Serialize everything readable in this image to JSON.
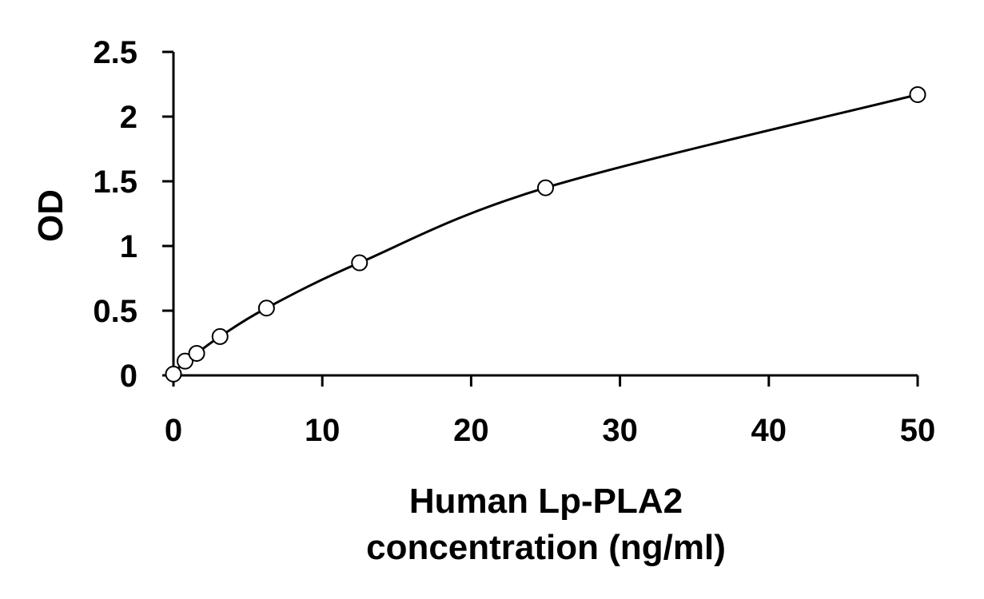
{
  "chart_data": {
    "type": "scatter",
    "title": "",
    "xlabel": [
      "Human Lp-PLA2",
      "concentration (ng/ml)"
    ],
    "ylabel": "OD",
    "xlim": [
      0,
      50
    ],
    "ylim": [
      0,
      2.5
    ],
    "x_ticks": [
      0,
      10,
      20,
      30,
      40,
      50
    ],
    "y_ticks": [
      0,
      0.5,
      1,
      1.5,
      2,
      2.5
    ],
    "x_tick_labels": [
      "0",
      "10",
      "20",
      "30",
      "40",
      "50"
    ],
    "y_tick_labels": [
      "0",
      "0.5",
      "1",
      "1.5",
      "2",
      "2.5"
    ],
    "grid": false,
    "legend": "none",
    "series": [
      {
        "marker": "open-circle",
        "fit": "smooth-curve",
        "x": [
          0,
          0.78,
          1.56,
          3.13,
          6.25,
          12.5,
          25,
          50
        ],
        "y": [
          0.01,
          0.11,
          0.17,
          0.3,
          0.52,
          0.87,
          1.45,
          2.17
        ]
      }
    ]
  }
}
